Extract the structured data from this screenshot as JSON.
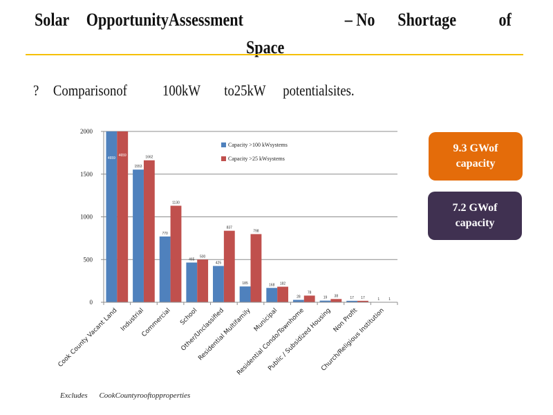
{
  "header": {
    "title_words": [
      "Solar",
      "OpportunityAssessment",
      "– No",
      "Shortage",
      "of"
    ],
    "title_line2": "Space",
    "accent_color": "#F5C000"
  },
  "bullet": {
    "glyph": "?",
    "words": [
      "Comparisonof",
      "100kW",
      "to25kW",
      "potentialsites."
    ]
  },
  "callouts": [
    {
      "line1": "9.3   GWof",
      "line2": "capacity",
      "color": "#E46C0A"
    },
    {
      "line1": "7.2   GWof",
      "line2": "capacity",
      "color": "#403151"
    }
  ],
  "footnote": {
    "word1": "Excludes",
    "word2": "CookCountyrooftopproperties"
  },
  "chart_data": {
    "type": "bar",
    "title": "",
    "xlabel": "",
    "ylabel": "",
    "ylim": [
      0,
      2000
    ],
    "yticks": [
      0,
      500,
      1000,
      1500,
      2000
    ],
    "grid": true,
    "legend_position": "top-right",
    "categories": [
      "Cook County Vacant Land",
      "Industrial",
      "Commercial",
      "School",
      "Other/Unclassified",
      "Residential Multifamily",
      "Municipal",
      "Residential Condo/Townhome",
      "Public / Subsidized Housing",
      "Non Profit",
      "Church/Religious Institution"
    ],
    "series": [
      {
        "name": "Capacity   >100   kWsystems",
        "color": "#4F81BD",
        "values": [
          4659,
          1553,
          770,
          465,
          425,
          185,
          168,
          28,
          19,
          17,
          1
        ],
        "labels": [
          "4659",
          "1553",
          "770",
          "465",
          "425",
          "185",
          "168",
          "28",
          "19",
          "17",
          "1"
        ]
      },
      {
        "name": "Capacity   >25   kWsystems",
        "color": "#C0504D",
        "values": [
          4659,
          1662,
          1130,
          500,
          837,
          798,
          182,
          78,
          38,
          17,
          1
        ],
        "labels": [
          "4659",
          "1662",
          "1130",
          "500",
          "837",
          "798",
          "182",
          "78",
          "38",
          "17",
          "1"
        ]
      }
    ]
  }
}
